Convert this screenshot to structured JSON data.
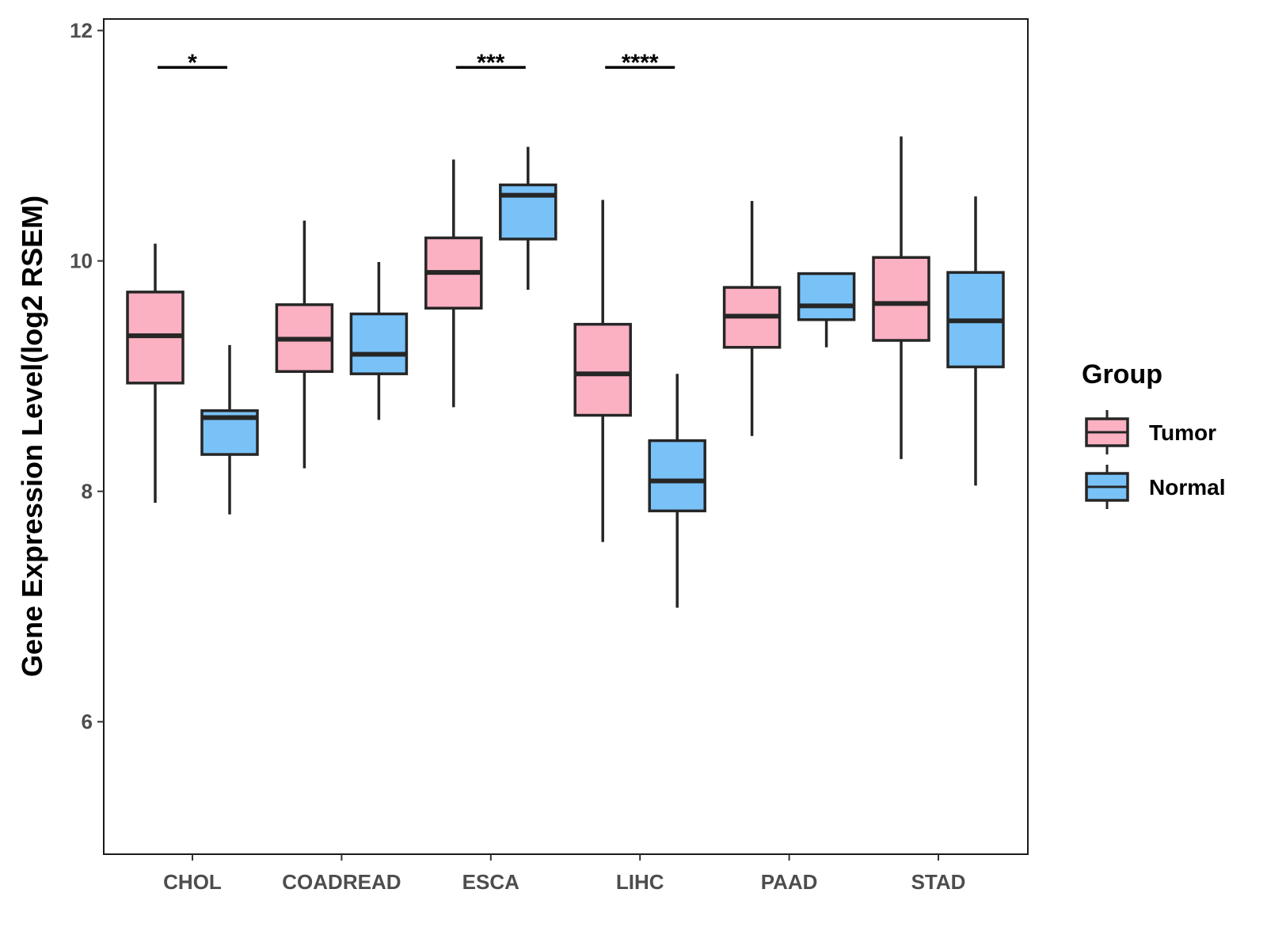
{
  "chart_data": {
    "type": "boxplot",
    "title": "",
    "xlabel": "",
    "ylabel": "Gene Expression Level(log2 RSEM)",
    "ylim": [
      4.85,
      12.1
    ],
    "yticks": [
      6,
      8,
      10,
      12
    ],
    "categories": [
      "CHOL",
      "COADREAD",
      "ESCA",
      "LIHC",
      "PAAD",
      "STAD"
    ],
    "series": [
      {
        "name": "Tumor",
        "color": "#FBB1C2",
        "boxes": [
          {
            "min": 7.9,
            "q1": 8.94,
            "median": 9.35,
            "q3": 9.73,
            "max": 10.15
          },
          {
            "min": 8.2,
            "q1": 9.04,
            "median": 9.32,
            "q3": 9.62,
            "max": 10.35
          },
          {
            "min": 8.73,
            "q1": 9.59,
            "median": 9.9,
            "q3": 10.2,
            "max": 10.88
          },
          {
            "min": 7.56,
            "q1": 8.66,
            "median": 9.02,
            "q3": 9.45,
            "max": 10.53
          },
          {
            "min": 8.48,
            "q1": 9.25,
            "median": 9.52,
            "q3": 9.77,
            "max": 10.52
          },
          {
            "min": 8.28,
            "q1": 9.31,
            "median": 9.63,
            "q3": 10.03,
            "max": 11.08
          }
        ]
      },
      {
        "name": "Normal",
        "color": "#79C2F8",
        "boxes": [
          {
            "min": 7.8,
            "q1": 8.32,
            "median": 8.64,
            "q3": 8.7,
            "max": 9.27
          },
          {
            "min": 8.62,
            "q1": 9.02,
            "median": 9.19,
            "q3": 9.54,
            "max": 9.99
          },
          {
            "min": 9.75,
            "q1": 10.19,
            "median": 10.57,
            "q3": 10.66,
            "max": 10.99
          },
          {
            "min": 6.99,
            "q1": 7.83,
            "median": 8.09,
            "q3": 8.44,
            "max": 9.02
          },
          {
            "min": 9.25,
            "q1": 9.49,
            "median": 9.61,
            "q3": 9.89,
            "max": 9.89
          },
          {
            "min": 8.05,
            "q1": 9.08,
            "median": 9.48,
            "q3": 9.9,
            "max": 10.56
          }
        ]
      }
    ],
    "annotations": [
      {
        "category": "CHOL",
        "label": "*",
        "y": 11.68
      },
      {
        "category": "ESCA",
        "label": "***",
        "y": 11.68
      },
      {
        "category": "LIHC",
        "label": "****",
        "y": 11.68
      }
    ],
    "legend": {
      "title": "Group",
      "position": "right",
      "entries": [
        "Tumor",
        "Normal"
      ]
    },
    "grid": false
  }
}
